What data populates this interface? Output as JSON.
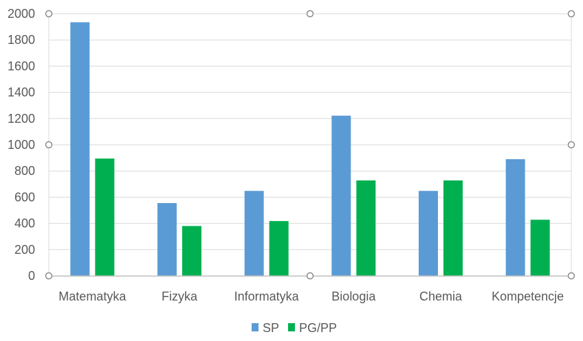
{
  "chart_data": {
    "type": "bar",
    "title": "",
    "xlabel": "",
    "ylabel": "",
    "categories": [
      "Matematyka",
      "Fizyka",
      "Informatyka",
      "Biologia",
      "Chemia",
      "Kompetencje"
    ],
    "series": [
      {
        "name": "SP",
        "color": "#5b9bd5",
        "values": [
          1935,
          555,
          648,
          1222,
          648,
          890
        ]
      },
      {
        "name": "PG/PP",
        "color": "#00b050",
        "values": [
          895,
          380,
          418,
          728,
          728,
          428
        ]
      }
    ],
    "ylim": [
      0,
      2000
    ],
    "yticks": [
      0,
      200,
      400,
      600,
      800,
      1000,
      1200,
      1400,
      1600,
      1800,
      2000
    ],
    "grid": true,
    "legend": "bottom-center",
    "selected": true
  }
}
